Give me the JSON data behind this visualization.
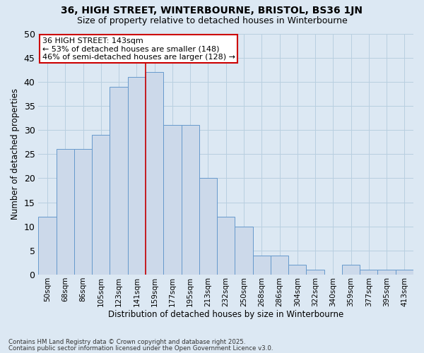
{
  "title1": "36, HIGH STREET, WINTERBOURNE, BRISTOL, BS36 1JN",
  "title2": "Size of property relative to detached houses in Winterbourne",
  "xlabel": "Distribution of detached houses by size in Winterbourne",
  "ylabel": "Number of detached properties",
  "bar_labels": [
    "50sqm",
    "68sqm",
    "86sqm",
    "105sqm",
    "123sqm",
    "141sqm",
    "159sqm",
    "177sqm",
    "195sqm",
    "213sqm",
    "232sqm",
    "250sqm",
    "268sqm",
    "286sqm",
    "304sqm",
    "322sqm",
    "340sqm",
    "359sqm",
    "377sqm",
    "395sqm",
    "413sqm"
  ],
  "bar_heights": [
    12,
    26,
    26,
    29,
    39,
    41,
    42,
    31,
    31,
    20,
    12,
    10,
    4,
    4,
    2,
    1,
    0,
    2,
    1,
    1,
    1
  ],
  "bar_color": "#ccd9ea",
  "bar_edge_color": "#6699cc",
  "highlight_index": 6,
  "highlight_line_color": "#cc0000",
  "ylim": [
    0,
    50
  ],
  "yticks": [
    0,
    5,
    10,
    15,
    20,
    25,
    30,
    35,
    40,
    45,
    50
  ],
  "annotation_title": "36 HIGH STREET: 143sqm",
  "annotation_line1": "← 53% of detached houses are smaller (148)",
  "annotation_line2": "46% of semi-detached houses are larger (128) →",
  "annotation_box_color": "#ffffff",
  "annotation_box_edge": "#cc0000",
  "grid_color": "#b8cfe0",
  "bg_color": "#dce8f3",
  "footer1": "Contains HM Land Registry data © Crown copyright and database right 2025.",
  "footer2": "Contains public sector information licensed under the Open Government Licence v3.0."
}
